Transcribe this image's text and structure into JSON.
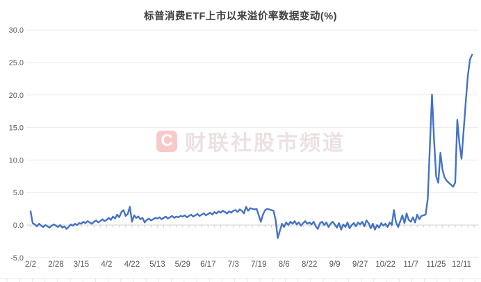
{
  "page": {
    "background": "#ffffff"
  },
  "header": {
    "title": "标普消费ETF上市以来溢价率数据变动(%)"
  },
  "watermark": {
    "logo_letter": "C",
    "text": "财联社股市频道",
    "logo_color": "#f7caca",
    "text_color": "#ece1e1"
  },
  "chart_data": {
    "type": "line",
    "title": "标普消费ETF上市以来溢价率数据变动(%)",
    "xlabel": "",
    "ylabel": "",
    "ylim": [
      -5,
      30
    ],
    "yticks": [
      -5,
      0,
      5,
      10,
      15,
      20,
      25,
      30
    ],
    "ytick_labels": [
      "-5.0",
      "0.0",
      "5.0",
      "10.0",
      "15.0",
      "20.0",
      "25.0",
      "30.0"
    ],
    "grid": true,
    "legend": "none",
    "categories": [
      "2/2",
      "2/28",
      "3/15",
      "4/2",
      "4/22",
      "5/13",
      "5/29",
      "6/17",
      "7/3",
      "7/19",
      "8/6",
      "8/22",
      "9/9",
      "9/27",
      "10/22",
      "11/7",
      "11/25",
      "12/11"
    ],
    "label_step": 12,
    "values": [
      2.1,
      0.3,
      0.1,
      -0.2,
      0.2,
      -0.1,
      -0.3,
      0.0,
      -0.2,
      -0.4,
      -0.1,
      0.1,
      -0.1,
      -0.3,
      0.0,
      -0.4,
      -0.2,
      -0.6,
      -0.3,
      0.1,
      -0.1,
      0.2,
      0.0,
      0.3,
      0.2,
      0.5,
      0.3,
      0.6,
      0.4,
      0.2,
      0.5,
      0.7,
      0.4,
      0.6,
      0.9,
      0.6,
      0.8,
      1.1,
      0.8,
      1.3,
      1.0,
      1.6,
      1.2,
      2.0,
      2.3,
      1.4,
      1.7,
      2.8,
      0.5,
      1.5,
      1.1,
      1.3,
      0.9,
      1.1,
      0.4,
      0.8,
      1.0,
      0.7,
      0.9,
      1.1,
      1.0,
      1.2,
      0.9,
      1.1,
      1.3,
      1.0,
      1.2,
      1.4,
      1.1,
      1.3,
      1.2,
      1.4,
      1.3,
      1.5,
      1.2,
      1.4,
      1.6,
      1.3,
      1.5,
      1.7,
      1.4,
      1.6,
      1.8,
      1.5,
      1.7,
      1.9,
      1.6,
      2.0,
      1.8,
      2.1,
      1.9,
      2.2,
      2.0,
      1.8,
      2.1,
      1.9,
      2.2,
      2.3,
      2.0,
      2.4,
      2.2,
      1.8,
      2.8,
      2.2,
      2.6,
      2.5,
      2.4,
      2.5,
      1.5,
      0.5,
      1.6,
      2.3,
      2.5,
      2.4,
      2.3,
      2.2,
      0.8,
      -2.0,
      -0.9,
      0.2,
      -0.3,
      0.4,
      0.0,
      0.5,
      0.2,
      0.6,
      0.1,
      0.4,
      -0.1,
      0.3,
      0.6,
      0.2,
      0.4,
      0.1,
      0.5,
      -0.2,
      -0.6,
      0.3,
      0.5,
      0.0,
      0.4,
      -0.3,
      0.2,
      0.5,
      0.1,
      -0.4,
      0.3,
      -0.7,
      0.1,
      -0.3,
      0.4,
      -0.5,
      0.0,
      0.3,
      -0.2,
      0.4,
      0.1,
      0.5,
      -0.2,
      0.7,
      0.3,
      -0.5,
      0.2,
      -0.7,
      0.0,
      -0.4,
      0.3,
      -0.1,
      0.2,
      -0.3,
      0.4,
      0.0,
      2.3,
      0.4,
      -0.3,
      0.6,
      1.5,
      0.3,
      1.8,
      0.8,
      0.5,
      1.2,
      0.4,
      1.6,
      0.9,
      1.4,
      1.5,
      1.6,
      4.0,
      12.0,
      20.1,
      13.0,
      7.5,
      6.5,
      11.1,
      8.5,
      7.3,
      6.8,
      6.5,
      6.2,
      5.9,
      6.5,
      16.2,
      12.5,
      10.2,
      14.5,
      19.0,
      23.0,
      25.5,
      26.2
    ],
    "line_color": "#4472c4",
    "grid_color": "#e9e9e9",
    "axis_color": "#cfcfcf",
    "tick_label_color": "#595959",
    "title_color": "#3f3f3f"
  }
}
